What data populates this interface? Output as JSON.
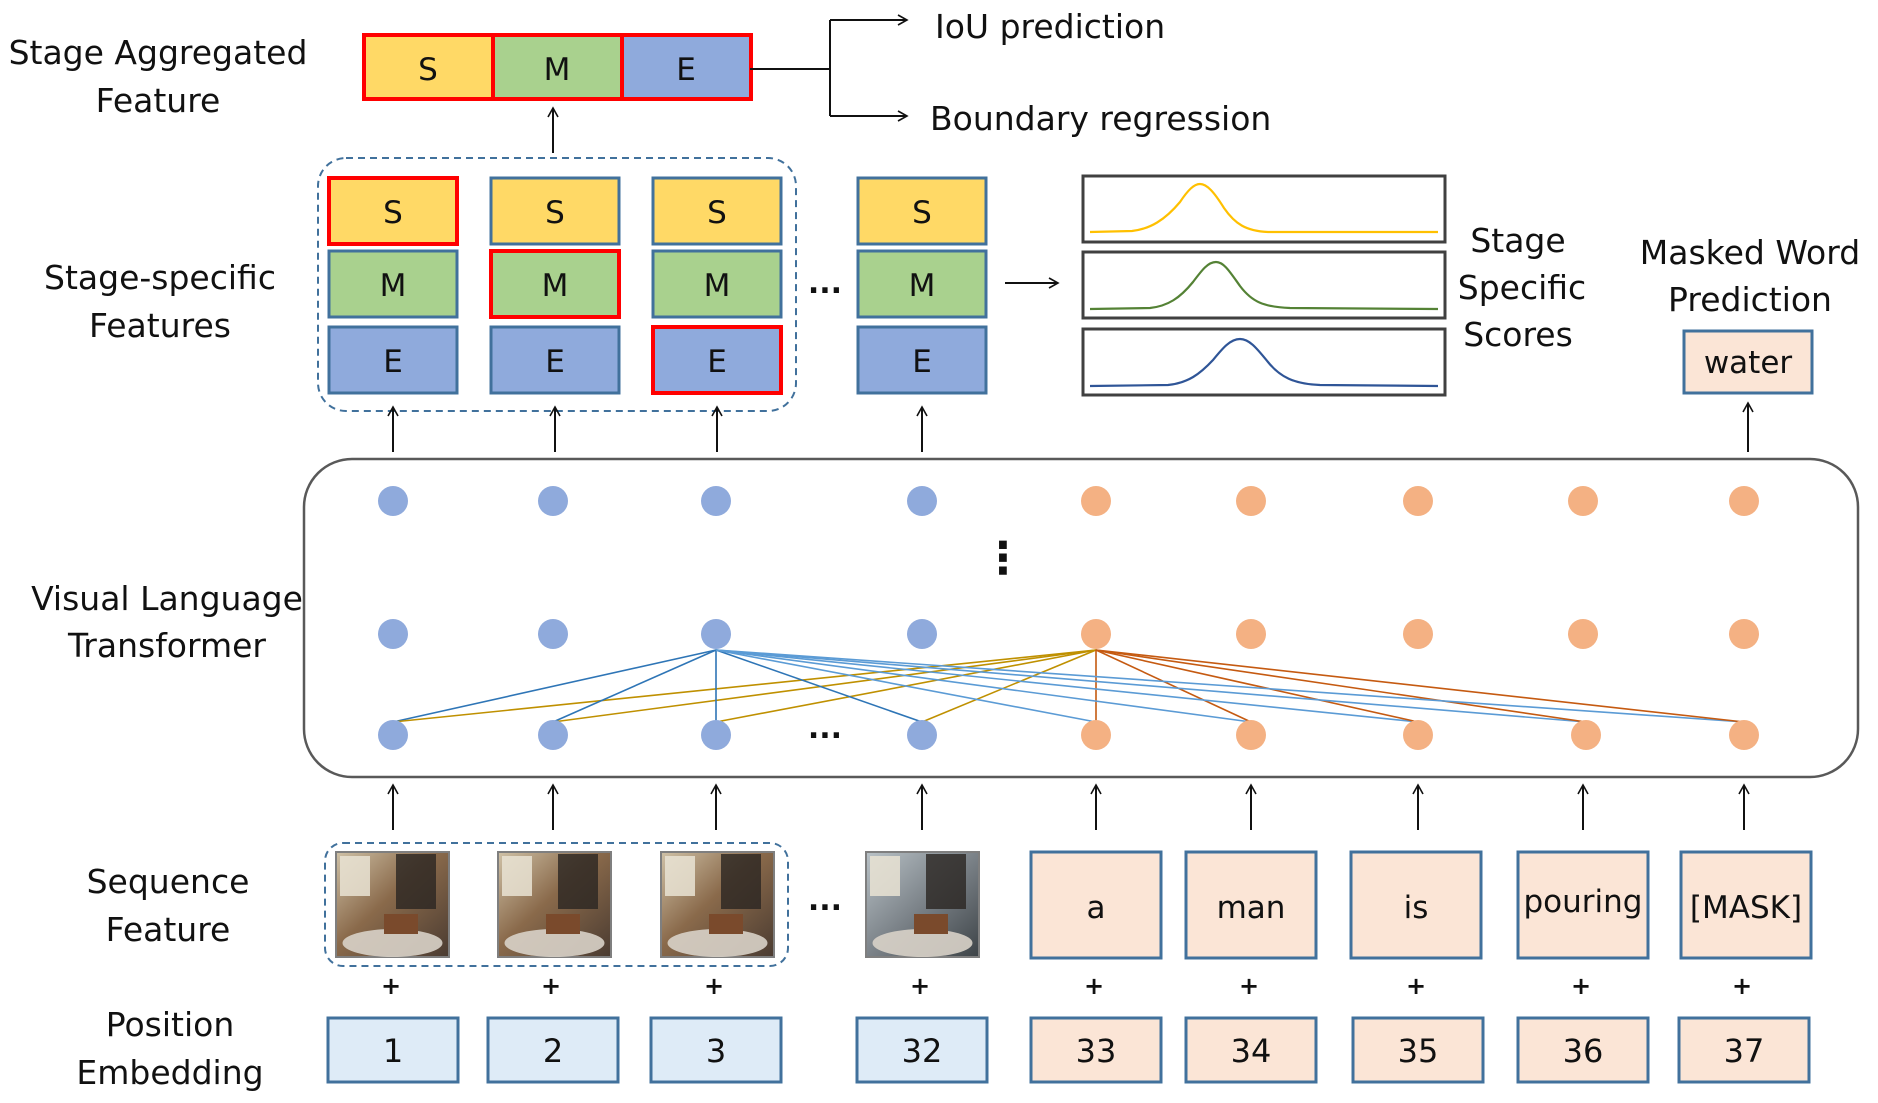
{
  "row_labels": {
    "aggregated": [
      "Stage Aggregated",
      "Feature"
    ],
    "specific": [
      "Stage-specific",
      "Features"
    ],
    "transformer": [
      "Visual Language",
      "Transformer"
    ],
    "sequence": [
      "Sequence",
      "Feature"
    ],
    "position": [
      "Position",
      "Embedding"
    ]
  },
  "stage_letters": [
    "S",
    "M",
    "E"
  ],
  "outputs": [
    "IoU prediction",
    "Boundary regression"
  ],
  "scores_label": [
    "Stage",
    "Specific",
    "Scores"
  ],
  "masked_label": [
    "Masked Word",
    "Prediction"
  ],
  "masked_word": "water",
  "words": [
    "a",
    "man",
    "is",
    "pouring",
    "[MASK]"
  ],
  "positions": [
    "1",
    "2",
    "3",
    "32",
    "33",
    "34",
    "35",
    "36",
    "37"
  ],
  "ellipsis": "...",
  "vdots": "⋮",
  "plus": "+",
  "colors": {
    "S": "#FFD966",
    "M": "#A9D18E",
    "E": "#8FAADC",
    "border": "#41719C",
    "highlight": "#FF0000",
    "visual_node": "#8FAADC",
    "text_node": "#F4B183",
    "word_box": "#FBE5D6",
    "pos_visual": "#DEEBF7",
    "pos_text": "#FBE5D6",
    "edge_visual_a": "#2E75B6",
    "edge_visual_b": "#5B9BD5",
    "edge_text_a": "#C55A11",
    "edge_text_b": "#BF9000",
    "curve_S": "#FFC000",
    "curve_M": "#548235",
    "curve_E": "#2F5597"
  }
}
